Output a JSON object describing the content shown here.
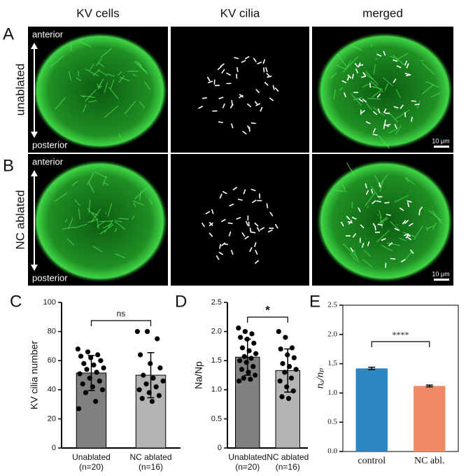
{
  "figure": {
    "column_titles": [
      "KV cells",
      "KV cilia",
      "merged"
    ],
    "panel_letters": [
      "A",
      "B",
      "C",
      "D",
      "E"
    ],
    "rows": [
      {
        "label": "unablated",
        "anterior": "anterior",
        "posterior": "posterior",
        "scale_bar": "10 μm"
      },
      {
        "label": "NC ablated",
        "anterior": "anterior",
        "posterior": "posterior",
        "scale_bar": "10 μm"
      }
    ]
  },
  "chart_data": [
    {
      "type": "bar",
      "y_label": "KV cilia number",
      "categories": [
        "Unablated",
        "NC ablated"
      ],
      "category_notes": [
        "(n=20)",
        "(n=16)"
      ],
      "values": [
        51.5,
        50
      ],
      "errors": [
        12,
        15.5
      ],
      "colors": [
        "#808080",
        "#b4b4b4"
      ],
      "points": [
        [
          68,
          66,
          64,
          63,
          62,
          60,
          58,
          57,
          55,
          54,
          52,
          51,
          48,
          46,
          44,
          42,
          40,
          38,
          32,
          27
        ],
        [
          80,
          80,
          75,
          64,
          58,
          55,
          50,
          48,
          46,
          44,
          42,
          40,
          38,
          36,
          34,
          32
        ]
      ],
      "annotation": "ns",
      "ylim": [
        0,
        100
      ],
      "yticks": [
        0,
        20,
        40,
        60,
        80,
        100
      ]
    },
    {
      "type": "bar",
      "y_label": "Na/Np",
      "categories": [
        "Unablated",
        "NC ablated"
      ],
      "category_notes": [
        "(n=20)",
        "(n=16)"
      ],
      "values": [
        1.56,
        1.33
      ],
      "errors": [
        0.31,
        0.37
      ],
      "colors": [
        "#808080",
        "#b4b4b4"
      ],
      "points": [
        [
          2.06,
          2.0,
          1.96,
          1.9,
          1.87,
          1.8,
          1.72,
          1.67,
          1.62,
          1.57,
          1.54,
          1.5,
          1.47,
          1.4,
          1.35,
          1.3,
          1.25,
          1.2,
          1.18,
          1.15
        ],
        [
          2.0,
          1.9,
          1.72,
          1.7,
          1.6,
          1.55,
          1.45,
          1.4,
          1.35,
          1.3,
          1.2,
          1.15,
          1.05,
          0.98,
          0.88,
          0.85
        ]
      ],
      "annotation": "*",
      "ylim": [
        0,
        2.5
      ],
      "yticks": [
        0,
        0.5,
        {
          "value": 1,
          "label": "1.0"
        },
        1.5,
        {
          "value": 2,
          "label": "2.0"
        },
        2.5
      ]
    },
    {
      "type": "bar",
      "y_label": "nₐ/nₚ",
      "categories": [
        "control",
        "NC abl."
      ],
      "values": [
        1.42,
        1.12
      ],
      "errors": [
        0.02,
        0.015
      ],
      "colors": [
        "#2e86c1",
        "#f08a65"
      ],
      "annotation": "****",
      "ylim": [
        0,
        2.5
      ],
      "yticks": [
        {
          "value": 0,
          "label": "0.0"
        },
        0.5,
        {
          "value": 1,
          "label": "1.0"
        },
        1.5,
        {
          "value": 2,
          "label": "2.0"
        },
        2.5
      ]
    }
  ]
}
